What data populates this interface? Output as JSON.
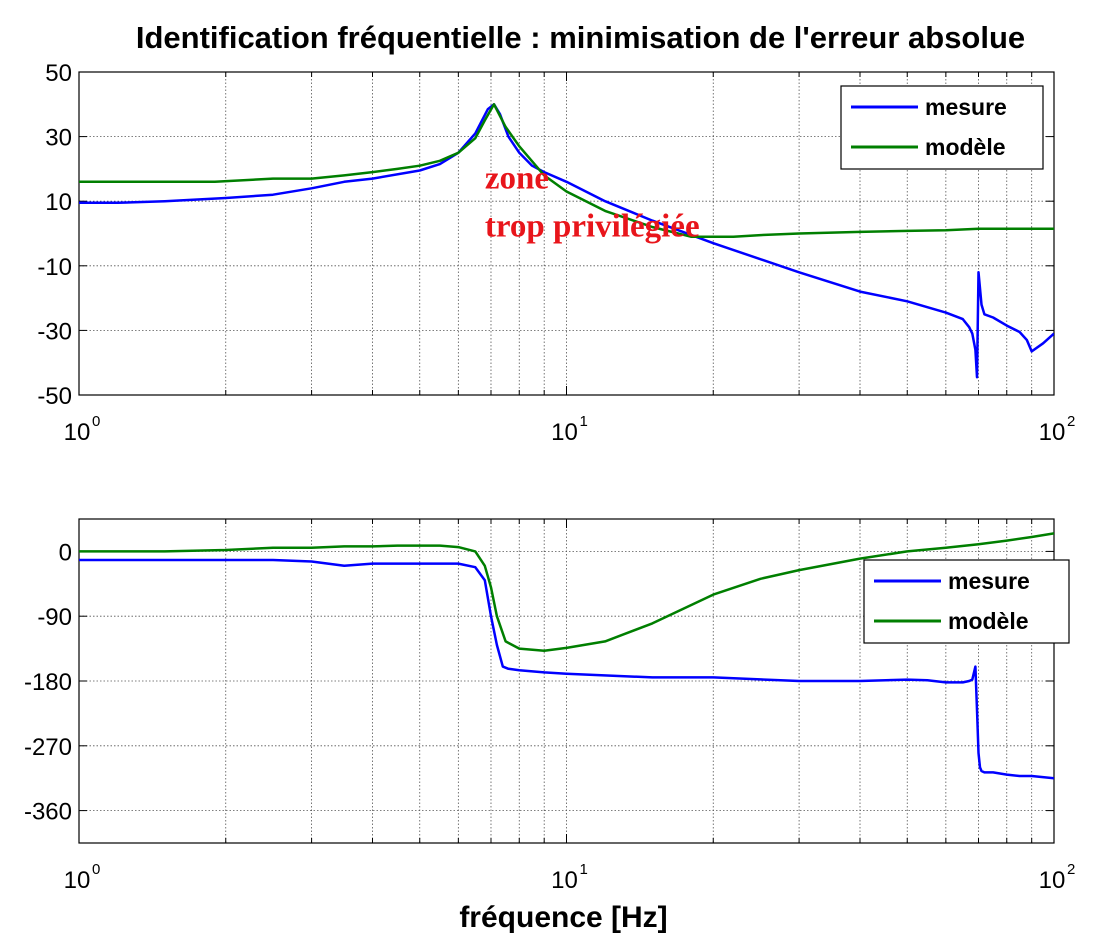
{
  "chart_data": [
    {
      "type": "line",
      "title": "Identification fréquentielle : minimisation de l'erreur absolue",
      "xscale": "log",
      "xlim": [
        1,
        100
      ],
      "ylim": [
        -50,
        50
      ],
      "yticks": [
        50,
        30,
        10,
        -10,
        -30,
        -50
      ],
      "xtick_labels": [
        {
          "base": "10",
          "exp": "0"
        },
        {
          "base": "10",
          "exp": "1"
        },
        {
          "base": "10",
          "exp": "2"
        }
      ],
      "grid": true,
      "legend_position": "top-right",
      "annotations": [
        {
          "text": "zone",
          "x": 6.8,
          "y": 14
        },
        {
          "text": "trop privilégiée",
          "x": 6.8,
          "y": -1
        }
      ],
      "series": [
        {
          "name": "mesure",
          "color": "#0000ff",
          "x": [
            1,
            1.2,
            1.5,
            2,
            2.5,
            3,
            3.5,
            4,
            5,
            5.5,
            6,
            6.5,
            6.9,
            7.1,
            7.3,
            7.6,
            8,
            8.5,
            9,
            10,
            12,
            15,
            20,
            30,
            40,
            50,
            60,
            65,
            67,
            68,
            69,
            69.5,
            70,
            70.5,
            71,
            72,
            75,
            80,
            85,
            88,
            90,
            95,
            100
          ],
          "y": [
            9.5,
            9.5,
            10,
            11,
            12,
            14,
            16,
            17,
            19.5,
            21.5,
            25,
            31,
            38.5,
            40,
            37,
            30,
            25,
            21,
            19,
            16,
            10,
            4,
            -3,
            -12,
            -18,
            -21,
            -24.5,
            -26.5,
            -29,
            -31,
            -36,
            -44.5,
            -12,
            -17,
            -22,
            -25,
            -26,
            -28.5,
            -30.5,
            -33,
            -36.5,
            -34,
            -31
          ]
        },
        {
          "name": "modèle",
          "color": "#007f00",
          "x": [
            1,
            1.5,
            1.9,
            2.5,
            3,
            3.5,
            4,
            4.5,
            5,
            5.5,
            6,
            6.5,
            6.8,
            7.1,
            7.5,
            8,
            9,
            10,
            12,
            15,
            18,
            22,
            25,
            30,
            40,
            50,
            60,
            70,
            80,
            100
          ],
          "y": [
            16,
            16,
            16,
            17,
            17,
            18,
            19,
            20,
            21,
            22.5,
            25,
            29.5,
            35,
            40,
            33,
            27,
            18,
            13,
            7,
            2,
            -1,
            -1,
            -0.5,
            0,
            0.5,
            0.8,
            1,
            1.5,
            1.5,
            1.5
          ]
        }
      ]
    },
    {
      "type": "line",
      "xlabel": "fréquence [Hz]",
      "xscale": "log",
      "xlim": [
        1,
        100
      ],
      "ylim": [
        -405,
        45
      ],
      "yticks": [
        0,
        -90,
        -180,
        -270,
        -360
      ],
      "xtick_labels": [
        {
          "base": "10",
          "exp": "0"
        },
        {
          "base": "10",
          "exp": "1"
        },
        {
          "base": "10",
          "exp": "2"
        }
      ],
      "grid": true,
      "legend_position": "right",
      "series": [
        {
          "name": "mesure",
          "color": "#0000ff",
          "x": [
            1,
            1.5,
            2,
            2.5,
            3,
            3.5,
            4,
            5,
            6,
            6.5,
            6.8,
            7,
            7.2,
            7.4,
            7.6,
            8,
            9,
            10,
            15,
            20,
            30,
            40,
            50,
            55,
            60,
            65,
            67,
            68,
            69,
            69.5,
            70,
            70.5,
            71,
            72,
            75,
            80,
            85,
            90,
            100
          ],
          "y": [
            -12,
            -12,
            -12,
            -12,
            -14,
            -20,
            -17,
            -17,
            -17,
            -22,
            -40,
            -90,
            -130,
            -160,
            -163,
            -165,
            -168,
            -170,
            -175,
            -175,
            -180,
            -180,
            -178,
            -179,
            -182,
            -182,
            -180,
            -178,
            -160,
            -220,
            -280,
            -300,
            -305,
            -307,
            -307,
            -310,
            -312,
            -312,
            -315
          ]
        },
        {
          "name": "modèle",
          "color": "#007f00",
          "x": [
            1,
            1.5,
            2,
            2.5,
            3,
            3.5,
            4,
            4.5,
            5,
            5.5,
            6,
            6.5,
            6.8,
            7,
            7.2,
            7.5,
            8,
            9,
            10,
            12,
            15,
            20,
            25,
            30,
            40,
            50,
            60,
            70,
            80,
            90,
            100
          ],
          "y": [
            0,
            0,
            2,
            5,
            5,
            7,
            7,
            8,
            8,
            8,
            6,
            0,
            -20,
            -50,
            -90,
            -125,
            -135,
            -138,
            -134,
            -125,
            -100,
            -60,
            -38,
            -26,
            -10,
            0,
            5,
            10,
            15,
            20,
            25
          ]
        }
      ]
    }
  ]
}
